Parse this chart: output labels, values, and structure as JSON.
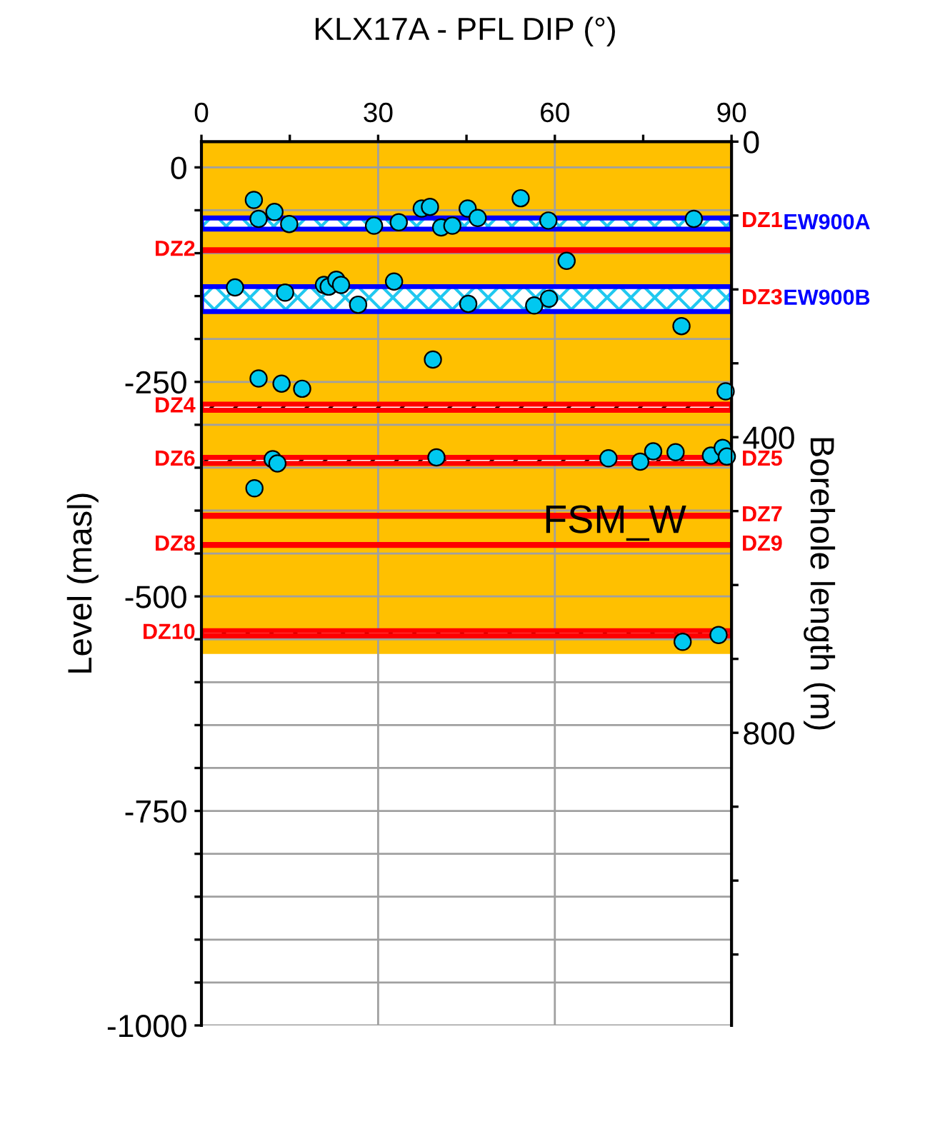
{
  "chart_data": {
    "type": "scatter",
    "title": "KLX17A - PFL DIP (°)",
    "xlabel": null,
    "ylabel": "Level (masl)",
    "y2label": "Borehole length (m)",
    "xlim": [
      0,
      90
    ],
    "xticks": [
      0,
      {
        "value": 15,
        "label": null
      },
      30,
      {
        "value": 45,
        "label": null
      },
      60,
      {
        "value": 75,
        "label": null
      },
      90
    ],
    "ylim": [
      -1000,
      30
    ],
    "yticks": [
      0,
      {
        "value": -50,
        "label": null
      },
      {
        "value": -100,
        "label": null
      },
      {
        "value": -150,
        "label": null
      },
      {
        "value": -200,
        "label": null
      },
      -250,
      {
        "value": -300,
        "label": null
      },
      {
        "value": -350,
        "label": null
      },
      {
        "value": -400,
        "label": null
      },
      {
        "value": -450,
        "label": null
      },
      -500,
      {
        "value": -550,
        "label": null
      },
      {
        "value": -600,
        "label": null
      },
      {
        "value": -650,
        "label": null
      },
      {
        "value": -700,
        "label": null
      },
      -750,
      {
        "value": -800,
        "label": null
      },
      {
        "value": -850,
        "label": null
      },
      {
        "value": -900,
        "label": null
      },
      {
        "value": -950,
        "label": null
      },
      -1000
    ],
    "y2lim": [
      1196,
      0
    ],
    "y2ticks": [
      0,
      {
        "value": 100,
        "label": null
      },
      {
        "value": 200,
        "label": null
      },
      {
        "value": 300,
        "label": null
      },
      400,
      {
        "value": 500,
        "label": null
      },
      {
        "value": 600,
        "label": null
      },
      {
        "value": 700,
        "label": null
      },
      800,
      {
        "value": 900,
        "label": null
      },
      {
        "value": 1000,
        "label": null
      },
      {
        "value": 1100,
        "label": null
      }
    ],
    "grid": true,
    "marker": "circle",
    "series": [
      {
        "color": "#00c8f0",
        "x": [
          8.9,
          9.7,
          12.4,
          14.9,
          29.3,
          33.5,
          37.4,
          38.8,
          40.7,
          42.6,
          45.2,
          46.9,
          54.2,
          58.9,
          83.6,
          62.0,
          5.7,
          14.2,
          20.8,
          21.6,
          22.9,
          23.7,
          26.6,
          32.7,
          45.3,
          56.5,
          59.0,
          81.5,
          39.3,
          9.7,
          13.6,
          17.1,
          89.0,
          12.1,
          12.9,
          39.9,
          69.1,
          74.5,
          76.7,
          80.5,
          86.5,
          88.5,
          89.2,
          9.0,
          81.7,
          87.8
        ],
        "values": [
          -38,
          -60,
          -52,
          -66,
          -68,
          -64,
          -48,
          -46,
          -70,
          -68,
          -48,
          -59,
          -36,
          -62,
          -60,
          -109,
          -140,
          -146,
          -137,
          -139,
          -131,
          -137,
          -160,
          -133,
          -159,
          -161,
          -153,
          -185,
          -224,
          -246,
          -252,
          -258,
          -261,
          -340,
          -345,
          -338,
          -339,
          -343,
          -331,
          -332,
          -336,
          -327,
          -337,
          -374,
          -553,
          -545
        ]
      }
    ],
    "bands": [
      {
        "axis": "y",
        "from": -567,
        "to": 30,
        "color": "#ffc000"
      },
      {
        "axis": "y",
        "from": -72,
        "to": -59,
        "color": "#0000ff",
        "label": "EW900A"
      },
      {
        "axis": "y",
        "from": -168,
        "to": -139,
        "color": "#0000ff",
        "label": "EW900B"
      },
      {
        "axis": "y",
        "from": -283,
        "to": -276,
        "color": "#ff0000"
      },
      {
        "axis": "y",
        "from": -345,
        "to": -338,
        "color": "#ff0000"
      },
      {
        "axis": "y",
        "from": -546,
        "to": -540,
        "color": "#ff0000"
      }
    ],
    "ref_lines": [
      {
        "axis": "y",
        "value": -96.5,
        "color": "#ff0000"
      },
      {
        "axis": "y",
        "value": -406,
        "color": "#ff0000"
      },
      {
        "axis": "y",
        "value": -440,
        "color": "#ff0000"
      }
    ],
    "annotations": [
      {
        "text": "DZ1",
        "x": 90,
        "y": -63
      },
      {
        "text": "DZ2",
        "x": 0,
        "y": -96.5
      },
      {
        "text": "DZ3",
        "x": 90,
        "y": -153
      },
      {
        "text": "DZ4",
        "x": 0,
        "y": -279
      },
      {
        "text": "DZ5",
        "x": 90,
        "y": -341
      },
      {
        "text": "DZ6",
        "x": 0,
        "y": -341
      },
      {
        "text": "DZ7",
        "x": 90,
        "y": -406
      },
      {
        "text": "DZ8",
        "x": 0,
        "y": -440
      },
      {
        "text": "DZ9",
        "x": 90,
        "y": -440
      },
      {
        "text": "DZ10",
        "x": 0,
        "y": -543
      },
      {
        "text": "FSM_W",
        "x": 58,
        "y": -414
      }
    ]
  }
}
